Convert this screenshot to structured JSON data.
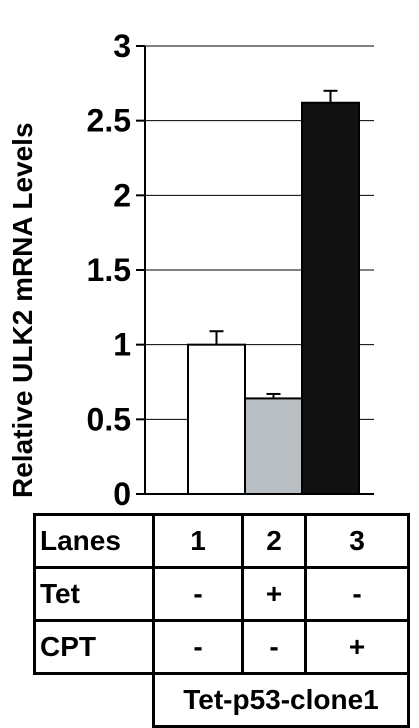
{
  "chart_data": {
    "type": "bar",
    "title": "",
    "ylabel": "Relative ULK2 mRNA Levels",
    "xlabel": "",
    "ylim": [
      0,
      3
    ],
    "yticks": [
      "0",
      "0.5",
      "1",
      "1.5",
      "2",
      "2.5",
      "3"
    ],
    "grid": true,
    "categories": [
      "1",
      "2",
      "3"
    ],
    "values": [
      1.0,
      0.64,
      2.62
    ],
    "errors": [
      0.09,
      0.03,
      0.08
    ],
    "colors": [
      "#ffffff",
      "#b9bec3",
      "#111111"
    ]
  },
  "table": {
    "rows": [
      {
        "header": "Lanes",
        "cells": [
          "1",
          "2",
          "3"
        ]
      },
      {
        "header": "Tet",
        "cells": [
          "-",
          "+",
          "-"
        ]
      },
      {
        "header": "CPT",
        "cells": [
          "-",
          "-",
          "+"
        ]
      }
    ],
    "footer": "Tet-p53-clone1"
  }
}
